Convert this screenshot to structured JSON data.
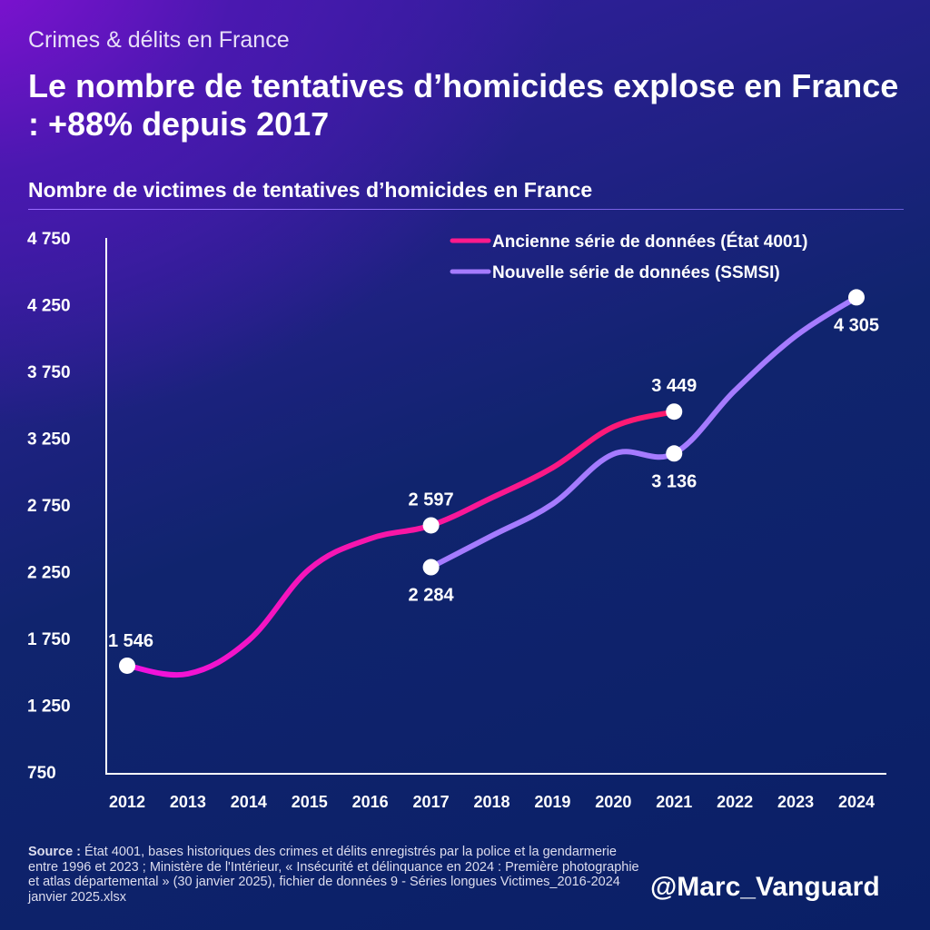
{
  "header": {
    "kicker": "Crimes & délits en France",
    "title": "Le nombre de tentatives d’homicides explose en France : +88% depuis 2017"
  },
  "chart_data": {
    "type": "line",
    "title": "Nombre de victimes de tentatives d’homicides en France",
    "xlabel": "",
    "ylabel": "",
    "categories": [
      "2012",
      "2013",
      "2014",
      "2015",
      "2016",
      "2017",
      "2018",
      "2019",
      "2020",
      "2021",
      "2022",
      "2023",
      "2024"
    ],
    "ylim": [
      750,
      4750
    ],
    "yticks": [
      750,
      1250,
      1750,
      2250,
      2750,
      3250,
      3750,
      4250,
      4750
    ],
    "ytick_labels": [
      "750",
      "1 250",
      "1 750",
      "2 250",
      "2 750",
      "3 250",
      "3 750",
      "4 250",
      "4 750"
    ],
    "grid": false,
    "legend": "top-right",
    "series": [
      {
        "name": "Ancienne série de données (État 4001)",
        "color": "#ff1a8c",
        "values": [
          1546,
          1485,
          1736,
          2270,
          2498,
          2597,
          2804,
          3029,
          3335,
          3449,
          null,
          null,
          null
        ],
        "labels": [
          {
            "year": "2012",
            "text": "1 546"
          },
          {
            "year": "2017",
            "text": "2 597"
          },
          {
            "year": "2021",
            "text": "3 449"
          }
        ]
      },
      {
        "name": "Nouvelle série de données (SSMSI)",
        "color": "#a57bff",
        "values": [
          null,
          null,
          null,
          null,
          null,
          2284,
          2519,
          2757,
          3131,
          3136,
          3607,
          4015,
          4305
        ],
        "labels": [
          {
            "year": "2017",
            "text": "2 284"
          },
          {
            "year": "2021",
            "text": "3 136"
          },
          {
            "year": "2024",
            "text": "4 305"
          }
        ]
      }
    ]
  },
  "footer": {
    "source_label": "Source : ",
    "source_text": "État 4001, bases historiques des crimes et délits enregistrés par la police et la gendarmerie entre 1996 et 2023 ; Ministère de l'Intérieur, « Insécurité et délinquance en 2024 : Première photographie et atlas départemental » (30 janvier 2025), fichier de données 9 - Séries longues Victimes_2016-2024  janvier 2025.xlsx",
    "handle": "@Marc_Vanguard"
  }
}
